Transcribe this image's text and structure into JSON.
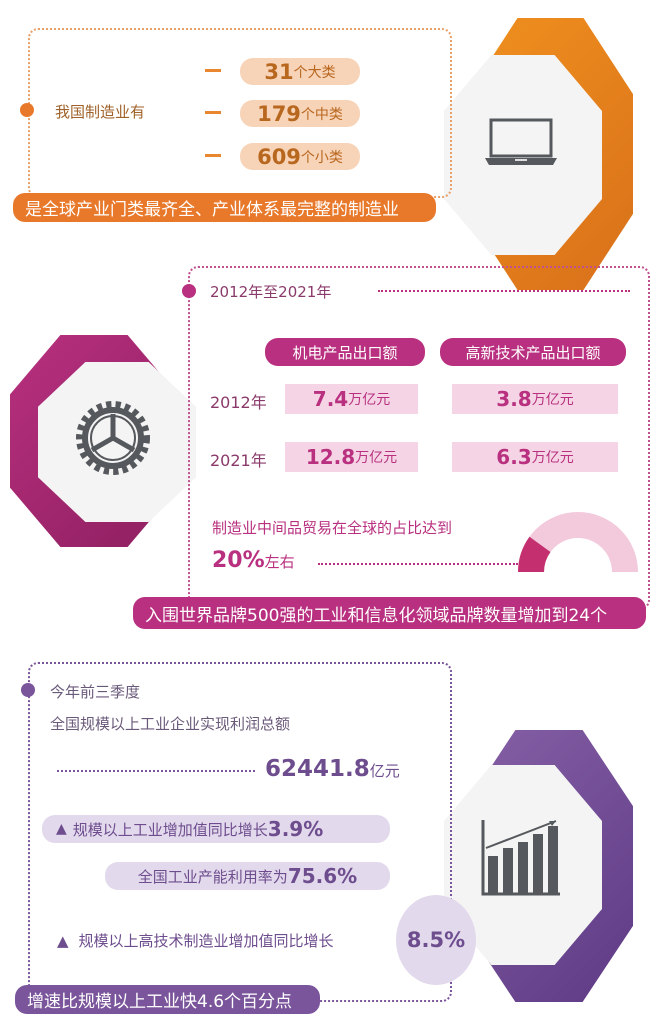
{
  "colors": {
    "orange": "#e8782a",
    "magenta": "#b8307f",
    "purple": "#7b559b"
  },
  "section1": {
    "intro": "我国制造业有",
    "items": [
      {
        "num": "31",
        "unit": "个大类"
      },
      {
        "num": "179",
        "unit": "个中类"
      },
      {
        "num": "609",
        "unit": "个小类"
      }
    ],
    "banner": "是全球产业门类最齐全、产业体系最完整的制造业",
    "icon": "laptop-icon"
  },
  "section2": {
    "period": "2012年至2021年",
    "headers": [
      "机电产品出口额",
      "高新技术产品出口额"
    ],
    "rows": [
      {
        "year": "2012年",
        "values": [
          {
            "num": "7.4",
            "unit": "万亿元"
          },
          {
            "num": "3.8",
            "unit": "万亿元"
          }
        ]
      },
      {
        "year": "2021年",
        "values": [
          {
            "num": "12.8",
            "unit": "万亿元"
          },
          {
            "num": "6.3",
            "unit": "万亿元"
          }
        ]
      }
    ],
    "share_text": "制造业中间品贸易在全球的占比达到",
    "share_num": "20%",
    "share_suffix": "左右",
    "share_percent": 20,
    "banner": "入围世界品牌500强的工业和信息化领域品牌数量增加到24个",
    "icon": "gear-icon"
  },
  "section3": {
    "period": "今年前三季度",
    "profit_label": "全国规模以上工业企业实现利润总额",
    "profit_num": "62441.8",
    "profit_unit": "亿元",
    "growth_label": "规模以上工业增加值同比增长",
    "growth_num": "3.9%",
    "capacity_label": "全国工业产能利用率为",
    "capacity_num": "75.6%",
    "hightech_label": "规模以上高技术制造业增加值同比增长",
    "hightech_num": "8.5%",
    "triangle": "▲",
    "banner": "增速比规模以上工业快4.6个百分点",
    "icon": "bar-chart-growth-icon"
  }
}
